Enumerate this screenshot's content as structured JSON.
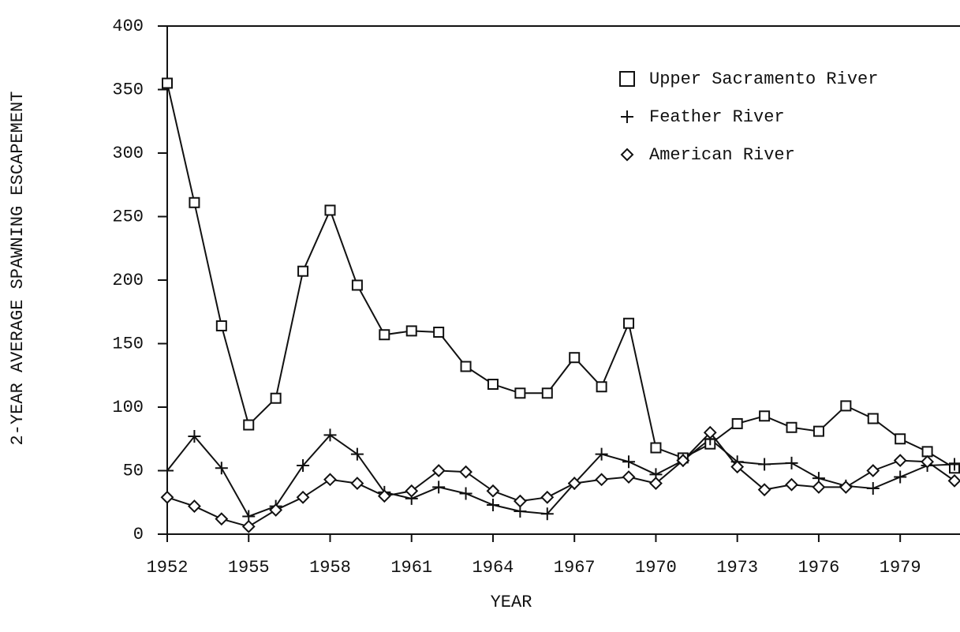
{
  "chart_data": {
    "type": "line",
    "x_label": "YEAR",
    "y_label": "2-YEAR AVERAGE SPAWNING ESCAPEMENT",
    "x": [
      1952,
      1953,
      1954,
      1955,
      1956,
      1957,
      1958,
      1959,
      1960,
      1961,
      1962,
      1963,
      1964,
      1965,
      1966,
      1967,
      1968,
      1969,
      1970,
      1971,
      1972,
      1973,
      1974,
      1975,
      1976,
      1977,
      1978,
      1979,
      1980,
      1981
    ],
    "series": [
      {
        "name": "Upper Sacramento River",
        "color": "#111111",
        "marker": "square",
        "values": [
          355,
          261,
          164,
          86,
          107,
          207,
          255,
          196,
          157,
          160,
          159,
          132,
          118,
          111,
          111,
          139,
          116,
          166,
          68,
          60,
          71,
          87,
          93,
          84,
          81,
          101,
          91,
          75,
          65,
          52
        ]
      },
      {
        "name": "Feather River",
        "color": "#111111",
        "marker": "plus",
        "values": [
          50,
          77,
          52,
          14,
          22,
          54,
          78,
          63,
          33,
          28,
          37,
          32,
          23,
          18,
          16,
          40,
          63,
          57,
          47,
          58,
          75,
          57,
          55,
          56,
          44,
          38,
          36,
          45,
          54,
          55
        ]
      },
      {
        "name": "American River",
        "color": "#111111",
        "marker": "diamond",
        "values": [
          29,
          22,
          12,
          6,
          19,
          29,
          43,
          40,
          30,
          34,
          50,
          49,
          34,
          26,
          29,
          40,
          43,
          45,
          40,
          58,
          80,
          53,
          35,
          39,
          37,
          37,
          50,
          58,
          57,
          42
        ]
      }
    ],
    "xlim": [
      1952,
      1981
    ],
    "xticks": [
      1952,
      1955,
      1958,
      1961,
      1964,
      1967,
      1970,
      1973,
      1976,
      1979
    ],
    "ylim": [
      0,
      400
    ],
    "yticks": [
      0,
      50,
      100,
      150,
      200,
      250,
      300,
      350,
      400
    ],
    "legend": "top-right"
  }
}
